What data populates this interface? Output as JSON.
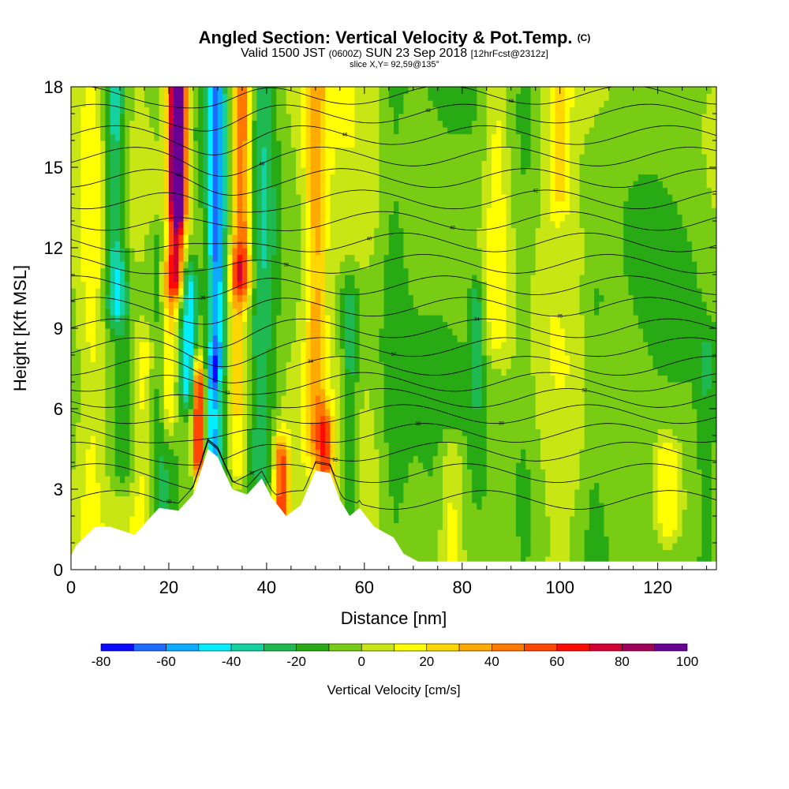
{
  "header": {
    "title": "Angled Section: Vertical Velocity & Pot.Temp.",
    "title_tag": "(C)",
    "valid_prefix": "Valid 1500 JST",
    "valid_utc": "(0600Z)",
    "valid_date": "SUN 23 Sep 2018",
    "forecast": "[12hrFcst@2312z]",
    "slice": "slice X,Y= 92,59@135°"
  },
  "chart_data": {
    "type": "heatmap",
    "xlabel": "Distance [nm]",
    "ylabel": "Height [Kft MSL]",
    "xlim": [
      0,
      132
    ],
    "ylim": [
      0,
      18
    ],
    "xticks": [
      0,
      20,
      40,
      60,
      80,
      100,
      120
    ],
    "yticks": [
      0,
      3,
      6,
      9,
      12,
      15,
      18
    ],
    "colorbar": {
      "label": "Vertical Velocity [cm/s]",
      "ticks": [
        -80,
        -60,
        -40,
        -20,
        0,
        20,
        40,
        60,
        80,
        100
      ],
      "bins": [
        -80,
        -70,
        -60,
        -50,
        -40,
        -30,
        -20,
        -10,
        0,
        10,
        20,
        30,
        40,
        50,
        60,
        70,
        80,
        90,
        100
      ],
      "colors": [
        "#0a0aff",
        "#1e6aff",
        "#0aaaff",
        "#00eeff",
        "#14d2a0",
        "#1eb950",
        "#28aa14",
        "#78cd14",
        "#c8e614",
        "#ffff00",
        "#ffd700",
        "#ffaa00",
        "#ff7800",
        "#ff4600",
        "#ff0a00",
        "#d20032",
        "#a0005a",
        "#690096"
      ]
    },
    "background_w": 7,
    "plumes": [
      {
        "x": 4,
        "w": 2.5,
        "y0": 0.5,
        "y1": 18,
        "v": 12
      },
      {
        "x": 9,
        "w": 2.2,
        "y0": 10,
        "y1": 18,
        "v": -38
      },
      {
        "x": 11,
        "w": 3,
        "y0": 4,
        "y1": 11,
        "v": -20
      },
      {
        "x": 15,
        "w": 2.5,
        "y0": 1,
        "y1": 8,
        "v": 20
      },
      {
        "x": 18,
        "w": 3,
        "y0": 1,
        "y1": 12,
        "v": -22
      },
      {
        "x": 21.5,
        "w": 1.8,
        "y0": 11,
        "y1": 18,
        "v": 68
      },
      {
        "x": 22,
        "w": 1.5,
        "y0": 14,
        "y1": 18,
        "v": 95
      },
      {
        "x": 20,
        "w": 1.6,
        "y0": 6,
        "y1": 11,
        "v": 30
      },
      {
        "x": 24,
        "w": 1.8,
        "y0": 7,
        "y1": 10.5,
        "v": -48
      },
      {
        "x": 26,
        "w": 1.2,
        "y0": 4.3,
        "y1": 6.8,
        "v": 80
      },
      {
        "x": 29,
        "w": 1.3,
        "y0": 4.5,
        "y1": 7,
        "v": -42
      },
      {
        "x": 29.5,
        "w": 1.6,
        "y0": 8,
        "y1": 18,
        "v": -46
      },
      {
        "x": 31,
        "w": 1.6,
        "y0": 3,
        "y1": 18,
        "v": -15
      },
      {
        "x": 35,
        "w": 2.2,
        "y0": 11,
        "y1": 18,
        "v": 62
      },
      {
        "x": 34,
        "w": 2,
        "y0": 4,
        "y1": 11,
        "v": 30
      },
      {
        "x": 39,
        "w": 3,
        "y0": 4,
        "y1": 18,
        "v": -22
      },
      {
        "x": 43,
        "w": 1.5,
        "y0": 2,
        "y1": 4,
        "v": 60
      },
      {
        "x": 50,
        "w": 2.2,
        "y0": 5,
        "y1": 18,
        "v": 32
      },
      {
        "x": 52,
        "w": 1.5,
        "y0": 2,
        "y1": 5,
        "v": 42
      },
      {
        "x": 57,
        "w": 1.8,
        "y0": 2,
        "y1": 10,
        "v": -25
      },
      {
        "x": 66,
        "w": 3,
        "y0": 1,
        "y1": 18,
        "v": -12
      },
      {
        "x": 78,
        "w": 2.5,
        "y0": 0,
        "y1": 4,
        "v": 22
      },
      {
        "x": 83,
        "w": 1.5,
        "y0": 7,
        "y1": 10,
        "v": -22
      },
      {
        "x": 87,
        "w": 2.5,
        "y0": 9,
        "y1": 18,
        "v": 18
      },
      {
        "x": 93,
        "w": 3,
        "y0": 0,
        "y1": 18,
        "v": -10
      },
      {
        "x": 100,
        "w": 2.5,
        "y0": 14,
        "y1": 18,
        "v": 20
      },
      {
        "x": 107,
        "w": 3,
        "y0": 0,
        "y1": 10,
        "v": -12
      },
      {
        "x": 122,
        "w": 2.5,
        "y0": 2,
        "y1": 4,
        "v": 25
      },
      {
        "x": 130,
        "w": 2,
        "y0": 0,
        "y1": 8,
        "v": -14
      }
    ],
    "terrain": [
      [
        0,
        0.5
      ],
      [
        1,
        0.9
      ],
      [
        5,
        1.6
      ],
      [
        8,
        1.6
      ],
      [
        13,
        1.3
      ],
      [
        15,
        1.7
      ],
      [
        18,
        2.3
      ],
      [
        22,
        2.2
      ],
      [
        25,
        2.8
      ],
      [
        28,
        4.5
      ],
      [
        30,
        4.2
      ],
      [
        33,
        3.0
      ],
      [
        36,
        2.8
      ],
      [
        39,
        3.4
      ],
      [
        41,
        2.7
      ],
      [
        44,
        2.0
      ],
      [
        47,
        2.4
      ],
      [
        50,
        3.7
      ],
      [
        53,
        3.6
      ],
      [
        55,
        2.6
      ],
      [
        57,
        2.0
      ],
      [
        59,
        2.3
      ],
      [
        62,
        1.6
      ],
      [
        66,
        1.2
      ],
      [
        68,
        0.6
      ],
      [
        71,
        0.3
      ],
      [
        132,
        0.3
      ]
    ],
    "isentropes": [
      {
        "base": 2.6,
        "label": "30"
      },
      {
        "base": 3.6,
        "label": "32"
      },
      {
        "base": 4.4,
        "label": "32"
      },
      {
        "base": 5.1,
        "label": "32"
      },
      {
        "base": 5.8,
        "label": "30"
      },
      {
        "base": 6.4,
        "label": "32"
      },
      {
        "base": 7.0,
        "label": "32"
      },
      {
        "base": 7.6,
        "label": "34"
      },
      {
        "base": 8.3,
        "label": "34"
      },
      {
        "base": 9.0,
        "label": "34"
      },
      {
        "base": 9.8,
        "label": "36"
      },
      {
        "base": 10.6,
        "label": "36"
      },
      {
        "base": 11.4,
        "label": "38"
      },
      {
        "base": 12.2,
        "label": "40"
      },
      {
        "base": 13.0,
        "label": "40"
      },
      {
        "base": 13.8,
        "label": "42"
      },
      {
        "base": 14.6,
        "label": "44"
      },
      {
        "base": 15.4,
        "label": "46"
      },
      {
        "base": 16.2,
        "label": "46"
      },
      {
        "base": 17.0,
        "label": "48"
      },
      {
        "base": 17.7,
        "label": "48"
      }
    ]
  }
}
